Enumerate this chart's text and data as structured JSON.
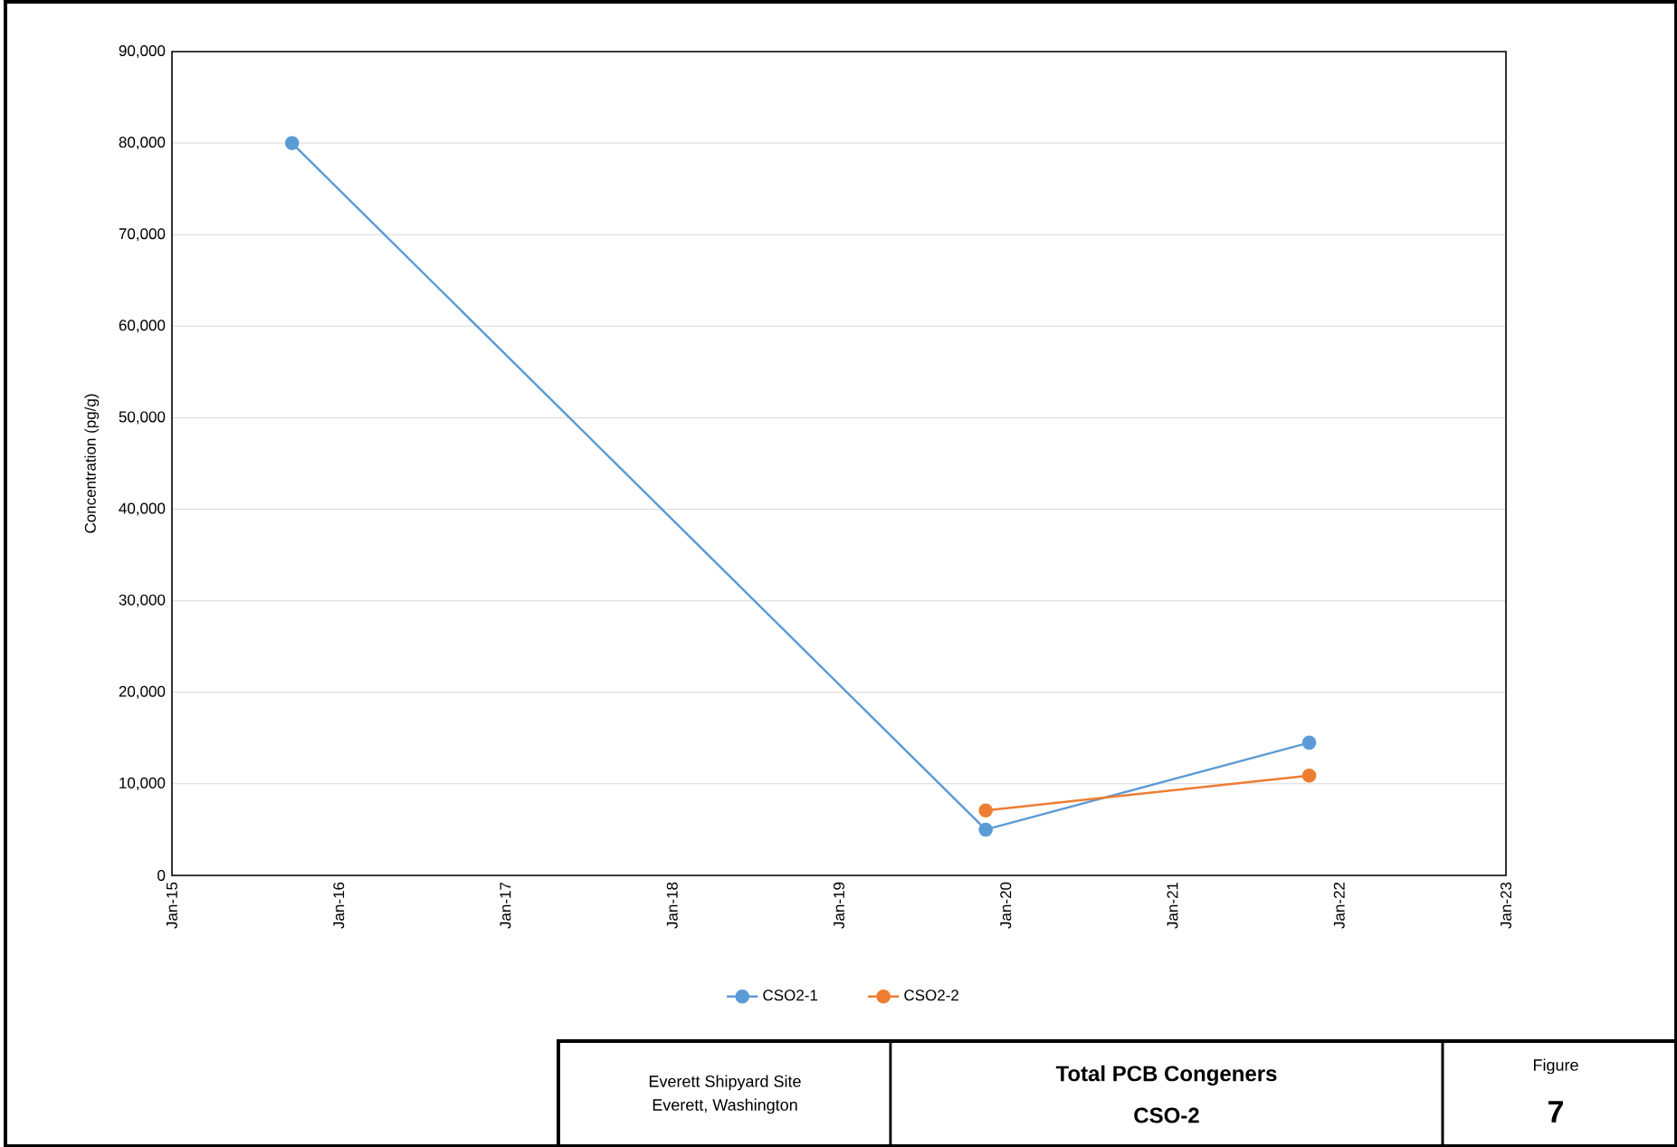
{
  "chart_data": {
    "type": "line",
    "title": "Total PCB Congeners",
    "subtitle": "CSO-2",
    "ylabel": "Concentration (pg/g)",
    "annotations": [
      "Everett Shipyard Site",
      "Everett, Washington",
      "Figure",
      "7"
    ],
    "series": [
      {
        "name": "CSO2-1",
        "color": "#5b9bd5",
        "x": [
          "2015-09-20",
          "2019-11-20",
          "2021-10-28"
        ],
        "values": [
          80000,
          5000,
          14500
        ]
      },
      {
        "name": "CSO2-2",
        "color": "#ed7d31",
        "x": [
          "2019-11-20",
          "2021-10-28"
        ],
        "values": [
          7100,
          10900
        ]
      }
    ],
    "xlim": [
      "2015-01-01",
      "2023-01-01"
    ],
    "xticks": [
      {
        "value": "2015-01-01",
        "label": "Jan-15"
      },
      {
        "value": "2016-01-01",
        "label": "Jan-16"
      },
      {
        "value": "2017-01-01",
        "label": "Jan-17"
      },
      {
        "value": "2018-01-01",
        "label": "Jan-18"
      },
      {
        "value": "2019-01-01",
        "label": "Jan-19"
      },
      {
        "value": "2020-01-01",
        "label": "Jan-20"
      },
      {
        "value": "2021-01-01",
        "label": "Jan-21"
      },
      {
        "value": "2022-01-01",
        "label": "Jan-22"
      },
      {
        "value": "2023-01-01",
        "label": "Jan-23"
      }
    ],
    "ylim": [
      0,
      90000
    ],
    "yticks": [
      0,
      {
        "value": 10000,
        "label": "10,000"
      },
      {
        "value": 20000,
        "label": "20,000"
      },
      {
        "value": 30000,
        "label": "30,000"
      },
      {
        "value": 40000,
        "label": "40,000"
      },
      {
        "value": 50000,
        "label": "50,000"
      },
      {
        "value": 60000,
        "label": "60,000"
      },
      {
        "value": 70000,
        "label": "70,000"
      },
      {
        "value": 80000,
        "label": "80,000"
      },
      {
        "value": 90000,
        "label": "90,000"
      }
    ],
    "grid": "y",
    "legend": "bottom",
    "marker": "circle",
    "line_style": "solid"
  }
}
